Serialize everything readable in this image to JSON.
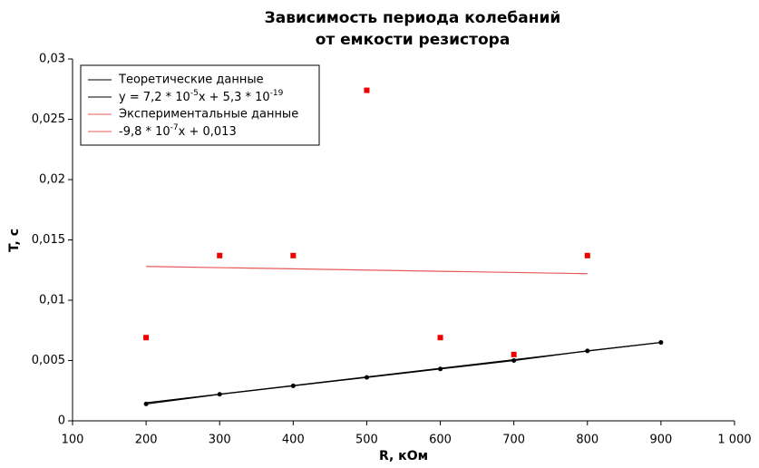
{
  "chart_data": {
    "type": "line",
    "title_lines": [
      "Зависимость периода колебаний",
      "от емкости резистора"
    ],
    "x_label": "R, кОм",
    "y_label": "T, с",
    "xlim": [
      100,
      1000
    ],
    "xticks": [
      100,
      200,
      300,
      400,
      500,
      600,
      700,
      800,
      900,
      {
        "value": 1000,
        "label": "1 000"
      }
    ],
    "ylim": [
      0,
      0.03
    ],
    "yticks": [
      0,
      {
        "value": 0.005,
        "label": "0,005"
      },
      {
        "value": 0.01,
        "label": "0,01"
      },
      {
        "value": 0.015,
        "label": "0,015"
      },
      {
        "value": 0.02,
        "label": "0,02"
      },
      {
        "value": 0.025,
        "label": "0,025"
      },
      {
        "value": 0.03,
        "label": "0,03"
      }
    ],
    "grid": false,
    "legend": "upper-left",
    "series": [
      {
        "name": "Теоретические данные",
        "color": "#000000",
        "mode": "lines+markers",
        "x": [
          200,
          300,
          400,
          500,
          600,
          700,
          800,
          900
        ],
        "values": [
          0.0014,
          0.0022,
          0.0029,
          0.0036,
          0.0043,
          0.005,
          0.0058,
          0.0065
        ]
      },
      {
        "name": [
          "y = 7,2 * 10",
          "-5",
          "x + 5,3 * 10",
          "-19"
        ],
        "color": "#000000",
        "mode": "lines",
        "x": [
          200,
          900
        ],
        "values": [
          0.0015,
          0.0065
        ]
      },
      {
        "name": "Экспериментальные данные",
        "color": "#ee0000",
        "mode": "markers",
        "x": [
          200,
          300,
          400,
          500,
          600,
          700,
          800
        ],
        "values": [
          0.0069,
          0.0137,
          0.0137,
          0.0274,
          0.0069,
          0.0055,
          0.0137
        ]
      },
      {
        "name": [
          "-9,8 * 10",
          "-7",
          "x + 0,013"
        ],
        "color": "#e8595a",
        "mode": "lines",
        "x": [
          200,
          800
        ],
        "values": [
          0.0128,
          0.0122
        ]
      }
    ]
  }
}
